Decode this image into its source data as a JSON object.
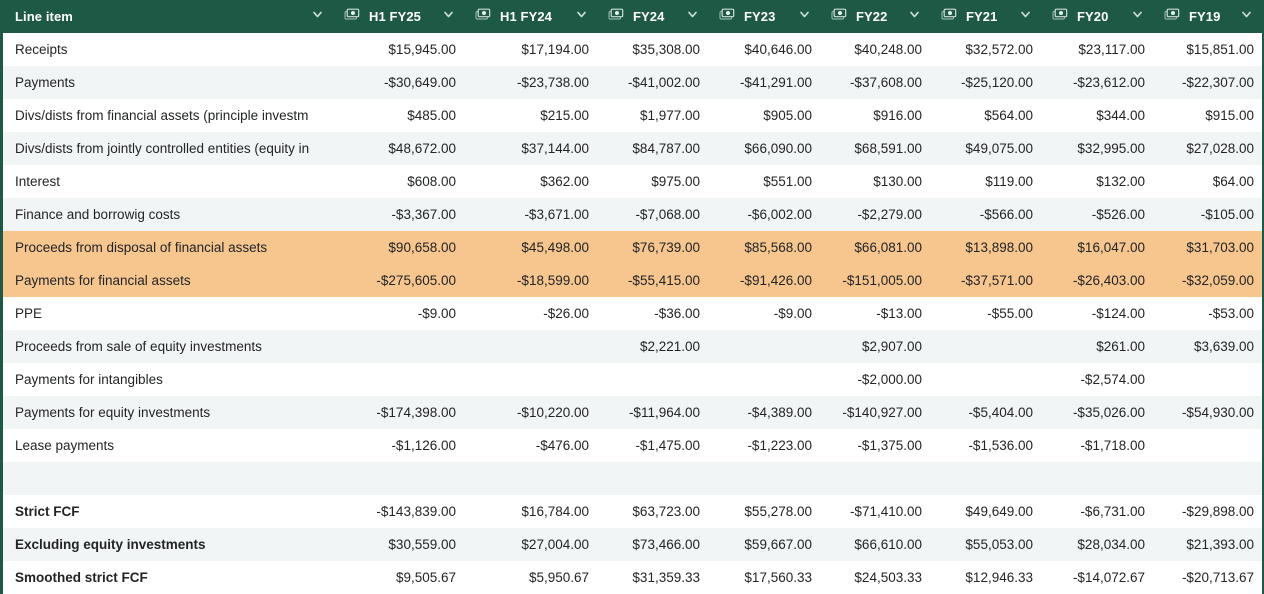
{
  "header": {
    "line_item_label": "Line item",
    "columns": [
      "H1 FY25",
      "H1 FY24",
      "FY24",
      "FY23",
      "FY22",
      "FY21",
      "FY20",
      "FY19"
    ],
    "icons": {
      "column_type_icon": "money-icon",
      "dropdown_icon": "chevron-down-icon"
    }
  },
  "colors": {
    "header_bg": "#1e5946",
    "header_text": "#ffffff",
    "stripe_row_bg": "#f2f5f5",
    "highlight_row_bg": "#f6c68e",
    "body_text": "#222426"
  },
  "rows": [
    {
      "label": "Receipts",
      "bold": false,
      "highlight": false,
      "values": [
        "$15,945.00",
        "$17,194.00",
        "$35,308.00",
        "$40,646.00",
        "$40,248.00",
        "$32,572.00",
        "$23,117.00",
        "$15,851.00"
      ]
    },
    {
      "label": "Payments",
      "bold": false,
      "highlight": false,
      "values": [
        "-$30,649.00",
        "-$23,738.00",
        "-$41,002.00",
        "-$41,291.00",
        "-$37,608.00",
        "-$25,120.00",
        "-$23,612.00",
        "-$22,307.00"
      ]
    },
    {
      "label": "Divs/dists from financial assets (principle investm",
      "bold": false,
      "highlight": false,
      "values": [
        "$485.00",
        "$215.00",
        "$1,977.00",
        "$905.00",
        "$916.00",
        "$564.00",
        "$344.00",
        "$915.00"
      ]
    },
    {
      "label": "Divs/dists from jointly controlled entities (equity in",
      "bold": false,
      "highlight": false,
      "values": [
        "$48,672.00",
        "$37,144.00",
        "$84,787.00",
        "$66,090.00",
        "$68,591.00",
        "$49,075.00",
        "$32,995.00",
        "$27,028.00"
      ]
    },
    {
      "label": "Interest",
      "bold": false,
      "highlight": false,
      "values": [
        "$608.00",
        "$362.00",
        "$975.00",
        "$551.00",
        "$130.00",
        "$119.00",
        "$132.00",
        "$64.00"
      ]
    },
    {
      "label": "Finance and borrowig costs",
      "bold": false,
      "highlight": false,
      "values": [
        "-$3,367.00",
        "-$3,671.00",
        "-$7,068.00",
        "-$6,002.00",
        "-$2,279.00",
        "-$566.00",
        "-$526.00",
        "-$105.00"
      ]
    },
    {
      "label": "Proceeds from disposal of financial assets",
      "bold": false,
      "highlight": true,
      "values": [
        "$90,658.00",
        "$45,498.00",
        "$76,739.00",
        "$85,568.00",
        "$66,081.00",
        "$13,898.00",
        "$16,047.00",
        "$31,703.00"
      ]
    },
    {
      "label": "Payments for financial assets",
      "bold": false,
      "highlight": true,
      "values": [
        "-$275,605.00",
        "-$18,599.00",
        "-$55,415.00",
        "-$91,426.00",
        "-$151,005.00",
        "-$37,571.00",
        "-$26,403.00",
        "-$32,059.00"
      ]
    },
    {
      "label": "PPE",
      "bold": false,
      "highlight": false,
      "values": [
        "-$9.00",
        "-$26.00",
        "-$36.00",
        "-$9.00",
        "-$13.00",
        "-$55.00",
        "-$124.00",
        "-$53.00"
      ]
    },
    {
      "label": "Proceeds from sale of equity investments",
      "bold": false,
      "highlight": false,
      "values": [
        "",
        "",
        "$2,221.00",
        "",
        "$2,907.00",
        "",
        "$261.00",
        "$3,639.00"
      ]
    },
    {
      "label": "Payments for intangibles",
      "bold": false,
      "highlight": false,
      "values": [
        "",
        "",
        "",
        "",
        "-$2,000.00",
        "",
        "-$2,574.00",
        ""
      ]
    },
    {
      "label": "Payments for equity investments",
      "bold": false,
      "highlight": false,
      "values": [
        "-$174,398.00",
        "-$10,220.00",
        "-$11,964.00",
        "-$4,389.00",
        "-$140,927.00",
        "-$5,404.00",
        "-$35,026.00",
        "-$54,930.00"
      ]
    },
    {
      "label": "Lease payments",
      "bold": false,
      "highlight": false,
      "values": [
        "-$1,126.00",
        "-$476.00",
        "-$1,475.00",
        "-$1,223.00",
        "-$1,375.00",
        "-$1,536.00",
        "-$1,718.00",
        ""
      ]
    },
    {
      "label": "",
      "bold": false,
      "highlight": false,
      "values": [
        "",
        "",
        "",
        "",
        "",
        "",
        "",
        ""
      ]
    },
    {
      "label": "Strict FCF",
      "bold": true,
      "highlight": false,
      "values": [
        "-$143,839.00",
        "$16,784.00",
        "$63,723.00",
        "$55,278.00",
        "-$71,410.00",
        "$49,649.00",
        "-$6,731.00",
        "-$29,898.00"
      ]
    },
    {
      "label": "Excluding equity investments",
      "bold": true,
      "highlight": false,
      "values": [
        "$30,559.00",
        "$27,004.00",
        "$73,466.00",
        "$59,667.00",
        "$66,610.00",
        "$55,053.00",
        "$28,034.00",
        "$21,393.00"
      ]
    },
    {
      "label": "Smoothed strict FCF",
      "bold": true,
      "highlight": false,
      "values": [
        "$9,505.67",
        "$5,950.67",
        "$31,359.33",
        "$17,560.33",
        "$24,503.33",
        "$12,946.33",
        "-$14,072.67",
        "-$20,713.67"
      ]
    }
  ]
}
